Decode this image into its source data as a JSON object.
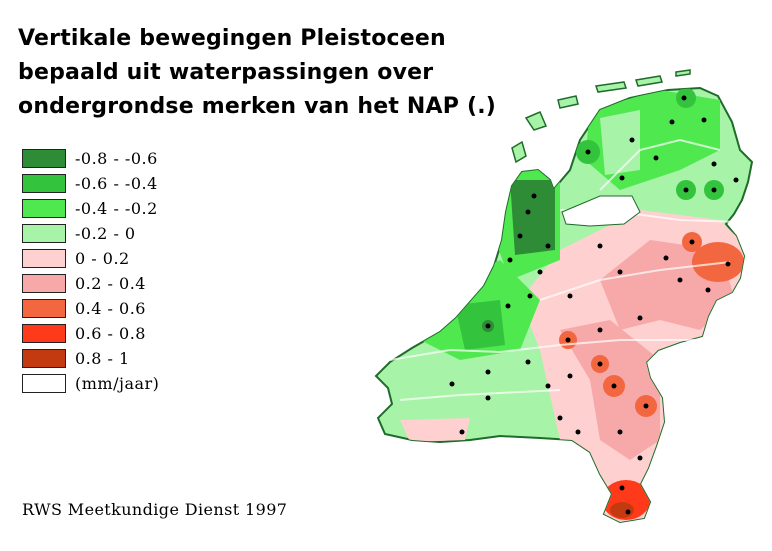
{
  "title": {
    "line1": "Vertikale bewegingen Pleistoceen",
    "line2": "bepaald uit waterpassingen over",
    "line3": "ondergrondse merken van het NAP (.)"
  },
  "legend": [
    {
      "label": "-0.8 - -0.6",
      "color": "#2e8b36"
    },
    {
      "label": "-0.6 - -0.4",
      "color": "#33c33d"
    },
    {
      "label": "-0.4 - -0.2",
      "color": "#4fe84f"
    },
    {
      "label": "-0.2 - 0",
      "color": "#a7f3a7"
    },
    {
      "label": "0 - 0.2",
      "color": "#ffd0d0"
    },
    {
      "label": "0.2 - 0.4",
      "color": "#f7a8a8"
    },
    {
      "label": "0.4 - 0.6",
      "color": "#f2673f"
    },
    {
      "label": "0.6 - 0.8",
      "color": "#ff3a1a"
    },
    {
      "label": "0.8 - 1",
      "color": "#c43a10"
    },
    {
      "label": "(mm/jaar)",
      "color": "#ffffff"
    }
  ],
  "credit": "RWS Meetkundige Dienst 1997"
}
